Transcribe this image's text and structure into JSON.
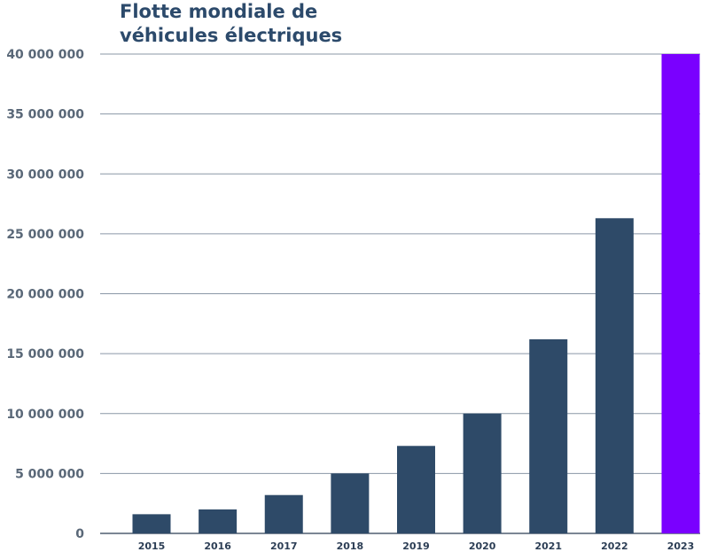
{
  "chart_data": {
    "type": "bar",
    "title": "Flotte mondiale de véhicules électriques",
    "title_lines": [
      "Flotte mondiale de",
      "véhicules électriques"
    ],
    "xlabel": "",
    "ylabel": "",
    "categories": [
      "2015",
      "2016",
      "2017",
      "2018",
      "2019",
      "2020",
      "2021",
      "2022",
      "2023"
    ],
    "values": [
      1600000,
      2000000,
      3200000,
      5000000,
      7300000,
      10000000,
      16200000,
      26300000,
      40000000
    ],
    "ylim": [
      0,
      40000000
    ],
    "yticks": [
      0,
      5000000,
      10000000,
      15000000,
      20000000,
      25000000,
      30000000,
      35000000,
      40000000
    ],
    "ytick_labels": [
      "0",
      "5 000 000",
      "10 000 000",
      "15 000 000",
      "20 000 000",
      "25 000 000",
      "30 000 000",
      "35 000 000",
      "40 000 000"
    ],
    "grid": true,
    "legend": "none",
    "colors": {
      "bar": "#2e4a68",
      "highlight": "#7a00ff",
      "title": "#2c4a6b",
      "grid": "#8a97a6",
      "tick_text": "#5a6878"
    },
    "highlight_category": "2023"
  }
}
